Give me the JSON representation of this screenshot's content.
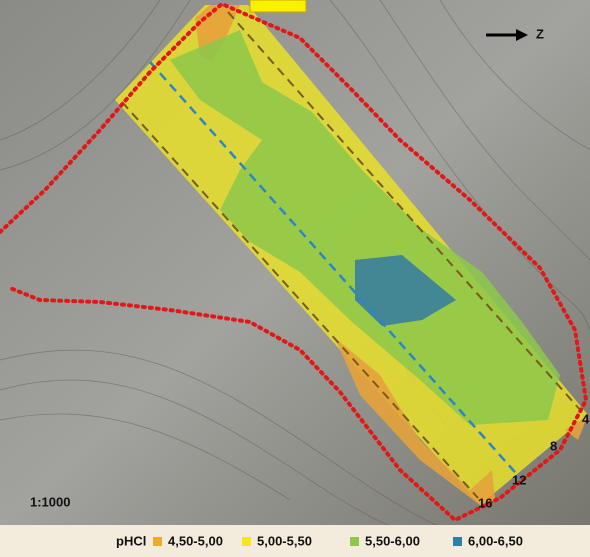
{
  "map": {
    "north_label": "Z",
    "scale": "1:1000",
    "row_labels": [
      "4",
      "8",
      "12",
      "16"
    ]
  },
  "legend": {
    "title": "pHCl",
    "items": [
      {
        "label": "4,50-5,00",
        "color": "#f0a830"
      },
      {
        "label": "5,00-5,50",
        "color": "#f4e81c"
      },
      {
        "label": "5,50-6,00",
        "color": "#8cc84b"
      },
      {
        "label": "6,00-6,50",
        "color": "#2e7fa6"
      }
    ]
  }
}
